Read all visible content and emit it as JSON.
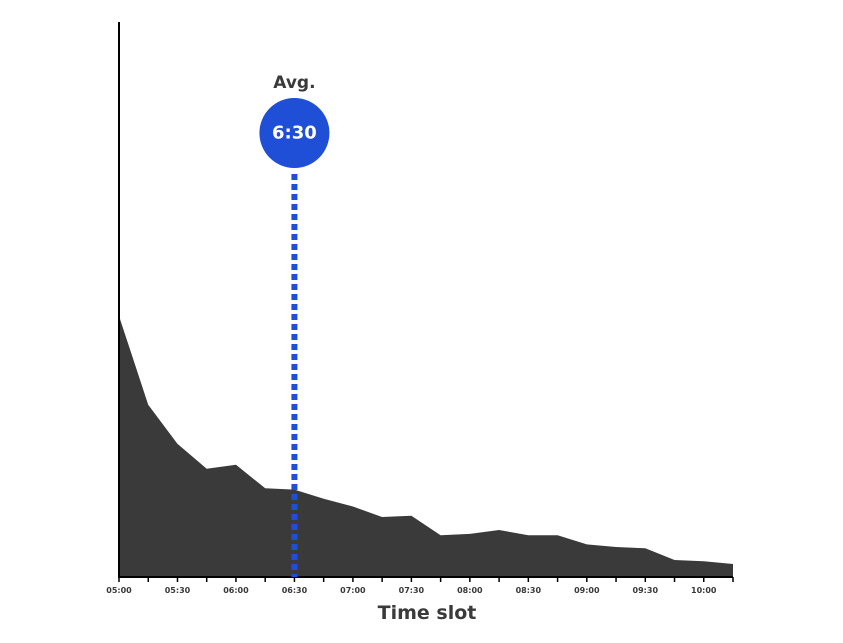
{
  "chart_data": {
    "type": "area",
    "title": "",
    "xlabel": "Time slot",
    "ylabel": "",
    "x": [
      "05:00",
      "05:15",
      "05:30",
      "05:45",
      "06:00",
      "06:15",
      "06:30",
      "06:45",
      "07:00",
      "07:15",
      "07:30",
      "07:45",
      "08:00",
      "08:15",
      "08:30",
      "08:45",
      "09:00",
      "09:15",
      "09:30",
      "09:45",
      "10:00",
      "10:15"
    ],
    "values": [
      100,
      66,
      51,
      41.5,
      43,
      34,
      33.5,
      30,
      27,
      23,
      23.5,
      16,
      16.5,
      18,
      16,
      16,
      12.5,
      11.5,
      11,
      6.5,
      6,
      5
    ],
    "ylim": [
      0,
      100
    ],
    "tick_labels": [
      "05:00",
      "05:30",
      "06:00",
      "06:30",
      "07:00",
      "07:30",
      "08:00",
      "08:30",
      "09:00",
      "09:30",
      "10:00"
    ],
    "area_color": "#3a3a3a",
    "average": {
      "label": "Avg.",
      "value": "6:30",
      "x": "06:30",
      "color": "#1f4fd6"
    }
  }
}
